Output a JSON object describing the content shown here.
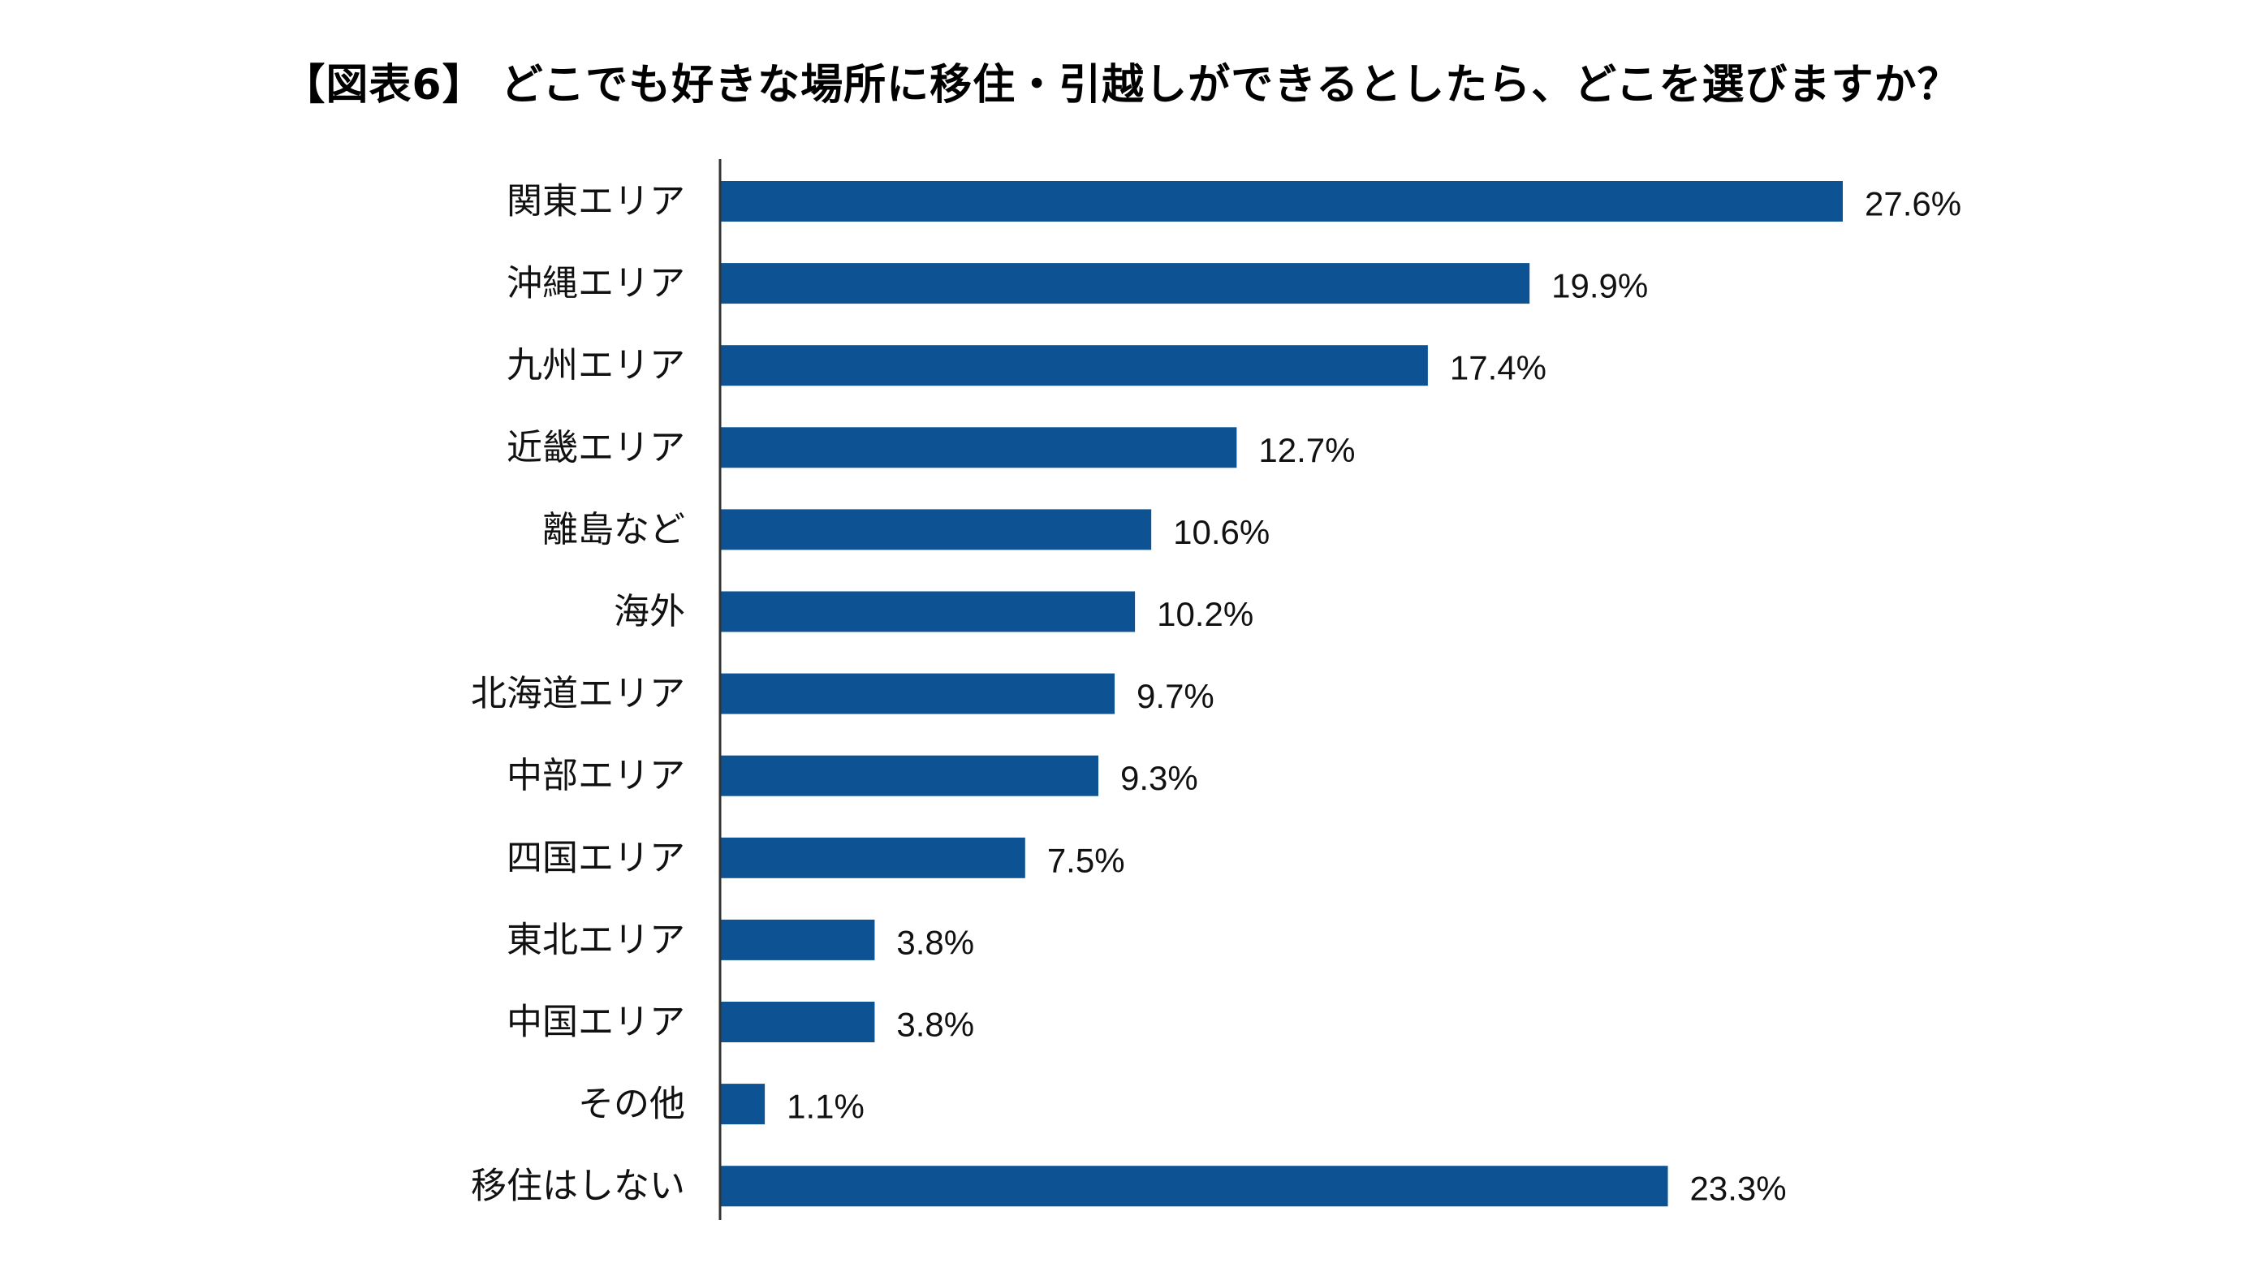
{
  "chart_data": {
    "type": "bar",
    "orientation": "horizontal",
    "title": "【図表6】 どこでも好きな場所に移住・引越しができるとしたら、どこを選びますか？",
    "categories": [
      "関東エリア",
      "沖縄エリア",
      "九州エリア",
      "近畿エリア",
      "離島など",
      "海外",
      "北海道エリア",
      "中部エリア",
      "四国エリア",
      "東北エリア",
      "中国エリア",
      "その他",
      "移住はしない"
    ],
    "values": [
      27.6,
      19.9,
      17.4,
      12.7,
      10.6,
      10.2,
      9.7,
      9.3,
      7.5,
      3.8,
      3.8,
      1.1,
      23.3
    ],
    "value_labels": [
      "27.6%",
      "19.9%",
      "17.4%",
      "12.7%",
      "10.6%",
      "10.2%",
      "9.7%",
      "9.3%",
      "7.5%",
      "3.8%",
      "3.8%",
      "1.1%",
      "23.3%"
    ],
    "unit": "%",
    "xlim": [
      0,
      30
    ],
    "xlabel": "",
    "ylabel": "",
    "grid": false,
    "legend": "none",
    "bar_color": "#0d5394"
  }
}
